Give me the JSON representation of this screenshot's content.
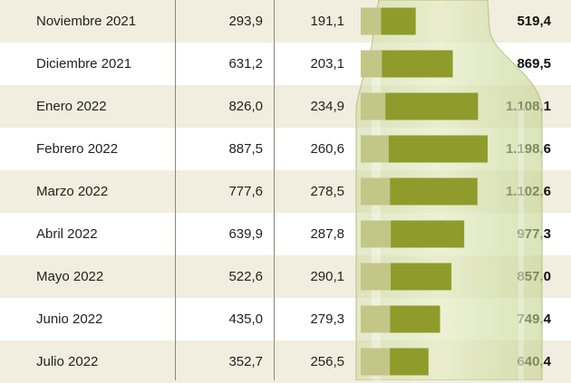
{
  "colors": {
    "shaded_row": "#f1eedf",
    "bar_light": "#c3c686",
    "bar_dark": "#8f9b2b",
    "bottle_glass": "#d9e4b3"
  },
  "chart_data": {
    "type": "table",
    "rows": [
      {
        "month": "Noviembre 2021",
        "a": "293,9",
        "b": "191,1",
        "total": "519,4",
        "total_value": 519.4,
        "light_share": 0.37
      },
      {
        "month": "Diciembre 2021",
        "a": "631,2",
        "b": "203,1",
        "total": "869,5",
        "total_value": 869.5,
        "light_share": 0.23
      },
      {
        "month": "Enero 2022",
        "a": "826,0",
        "b": "234,9",
        "total": "1.108,1",
        "total_value": 1108.1,
        "light_share": 0.21
      },
      {
        "month": "Febrero 2022",
        "a": "887,5",
        "b": "260,6",
        "total": "1.198,6",
        "total_value": 1198.6,
        "light_share": 0.22
      },
      {
        "month": "Marzo 2022",
        "a": "777,6",
        "b": "278,5",
        "total": "1.102,6",
        "total_value": 1102.6,
        "light_share": 0.25
      },
      {
        "month": "Abril 2022",
        "a": "639,9",
        "b": "287,8",
        "total": "977,3",
        "total_value": 977.3,
        "light_share": 0.29
      },
      {
        "month": "Mayo 2022",
        "a": "522,6",
        "b": "290,1",
        "total": "857,0",
        "total_value": 857.0,
        "light_share": 0.33
      },
      {
        "month": "Junio 2022",
        "a": "435,0",
        "b": "279,3",
        "total": "749,4",
        "total_value": 749.4,
        "light_share": 0.37
      },
      {
        "month": "Julio 2022",
        "a": "352,7",
        "b": "256,5",
        "total": "640,4",
        "total_value": 640.4,
        "light_share": 0.43
      }
    ]
  }
}
